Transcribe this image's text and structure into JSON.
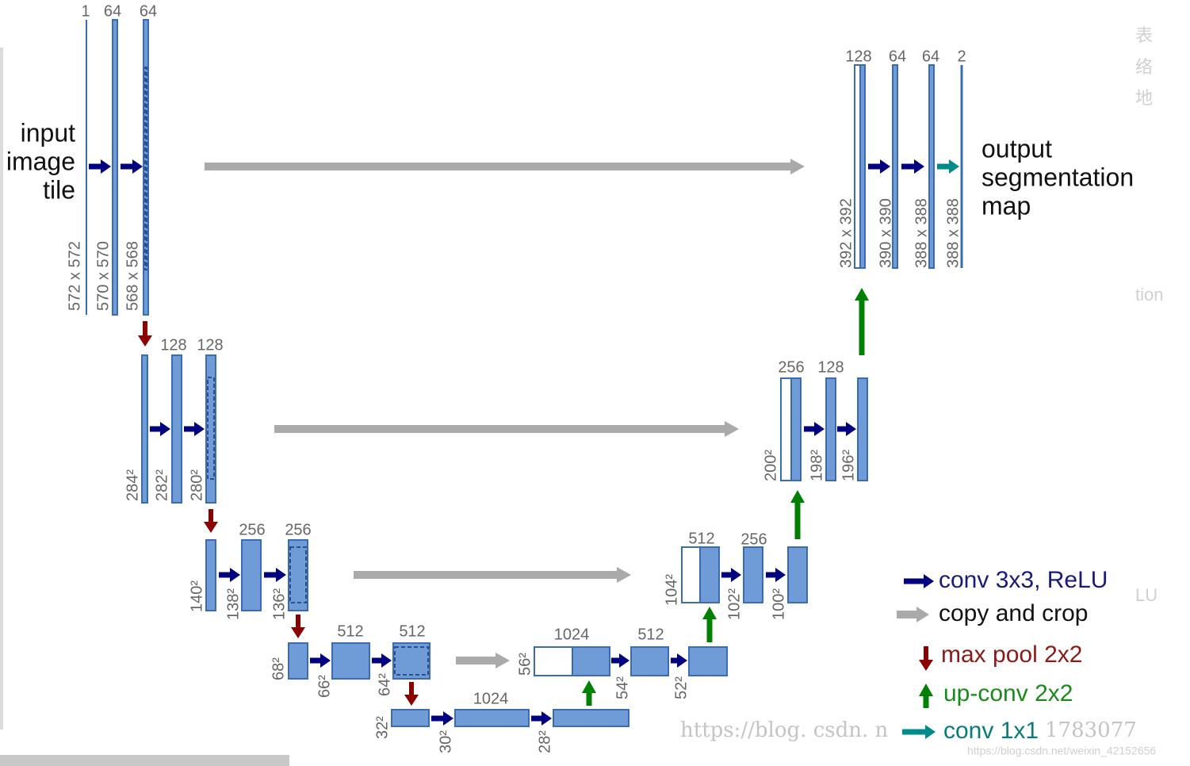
{
  "input_label": [
    "input",
    "image",
    "tile"
  ],
  "output_label": [
    "output",
    "segmentation",
    "map"
  ],
  "channel_labels": [
    "1",
    "64",
    "64",
    "128",
    "128",
    "256",
    "256",
    "512",
    "512",
    "1024",
    "1024",
    "512",
    "512",
    "256",
    "256",
    "128",
    "128",
    "64",
    "64",
    "2"
  ],
  "size_labels": [
    "572 x 572",
    "570 x 570",
    "568 x 568",
    "284²",
    "282²",
    "280²",
    "140²",
    "138²",
    "136²",
    "68²",
    "66²",
    "64²",
    "32²",
    "30²",
    "28²",
    "56²",
    "54²",
    "52²",
    "104²",
    "102²",
    "100²",
    "200²",
    "198²",
    "196²",
    "392 x 392",
    "390 x 390",
    "388 x 388",
    "388 x 388"
  ],
  "legend": [
    "conv 3x3, ReLU",
    "copy and crop",
    "max pool 2x2",
    "up-conv 2x2",
    "conv 1x1"
  ],
  "watermarks": [
    "https://blog. csdn. n",
    "1783077",
    "https://blog.csdn.net/weixin_42152656"
  ],
  "side_fragments": [
    "表",
    "络",
    "地",
    "tion",
    "LU"
  ]
}
